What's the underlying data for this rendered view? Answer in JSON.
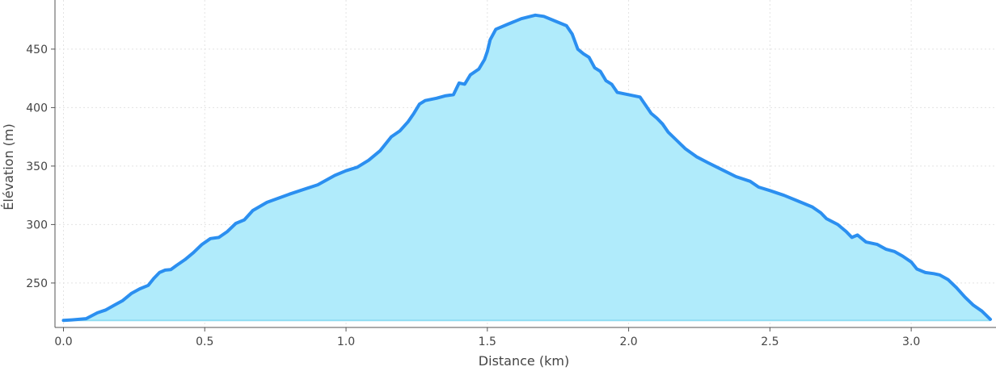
{
  "chart_data": {
    "type": "area",
    "title": "",
    "xlabel": "Distance (km)",
    "ylabel": "Élévation (m)",
    "xlim": [
      -0.03,
      3.3
    ],
    "ylim": [
      212,
      492
    ],
    "x_ticks": [
      0.0,
      0.5,
      1.0,
      1.5,
      2.0,
      2.5,
      3.0
    ],
    "x_tick_labels": [
      "0.0",
      "0.5",
      "1.0",
      "1.5",
      "2.0",
      "2.5",
      "3.0"
    ],
    "y_ticks": [
      250,
      300,
      350,
      400,
      450
    ],
    "y_tick_labels": [
      "250",
      "300",
      "350",
      "400",
      "450"
    ],
    "grid": true,
    "baseline": 218,
    "series": [
      {
        "line_color": "#2b8ff0",
        "fill_color": "#b0ebfb",
        "points": [
          [
            0.0,
            218
          ],
          [
            0.03,
            218.5
          ],
          [
            0.08,
            219.5
          ],
          [
            0.12,
            224.5
          ],
          [
            0.15,
            227
          ],
          [
            0.18,
            231
          ],
          [
            0.21,
            235
          ],
          [
            0.24,
            241
          ],
          [
            0.27,
            245
          ],
          [
            0.3,
            248
          ],
          [
            0.32,
            254
          ],
          [
            0.34,
            259
          ],
          [
            0.36,
            261
          ],
          [
            0.38,
            261.5
          ],
          [
            0.4,
            265
          ],
          [
            0.43,
            270
          ],
          [
            0.46,
            276
          ],
          [
            0.49,
            283
          ],
          [
            0.52,
            288
          ],
          [
            0.55,
            289
          ],
          [
            0.58,
            294
          ],
          [
            0.61,
            301
          ],
          [
            0.64,
            304
          ],
          [
            0.67,
            312
          ],
          [
            0.72,
            319
          ],
          [
            0.8,
            326
          ],
          [
            0.9,
            334
          ],
          [
            0.96,
            342
          ],
          [
            1.0,
            346
          ],
          [
            1.04,
            349
          ],
          [
            1.08,
            355
          ],
          [
            1.12,
            363
          ],
          [
            1.16,
            375
          ],
          [
            1.19,
            380
          ],
          [
            1.22,
            388
          ],
          [
            1.24,
            395
          ],
          [
            1.26,
            403
          ],
          [
            1.28,
            406
          ],
          [
            1.32,
            408
          ],
          [
            1.35,
            410
          ],
          [
            1.38,
            411
          ],
          [
            1.4,
            421
          ],
          [
            1.42,
            420
          ],
          [
            1.44,
            428
          ],
          [
            1.47,
            433
          ],
          [
            1.49,
            441
          ],
          [
            1.5,
            448
          ],
          [
            1.51,
            458
          ],
          [
            1.53,
            467
          ],
          [
            1.57,
            471
          ],
          [
            1.62,
            476
          ],
          [
            1.67,
            479
          ],
          [
            1.7,
            478
          ],
          [
            1.74,
            474
          ],
          [
            1.78,
            470
          ],
          [
            1.8,
            463
          ],
          [
            1.82,
            450
          ],
          [
            1.84,
            446
          ],
          [
            1.86,
            443
          ],
          [
            1.88,
            434
          ],
          [
            1.9,
            431
          ],
          [
            1.92,
            423
          ],
          [
            1.94,
            420
          ],
          [
            1.96,
            413
          ],
          [
            2.0,
            411
          ],
          [
            2.04,
            409
          ],
          [
            2.06,
            402
          ],
          [
            2.08,
            395
          ],
          [
            2.1,
            391
          ],
          [
            2.12,
            386
          ],
          [
            2.14,
            379
          ],
          [
            2.17,
            372
          ],
          [
            2.2,
            365
          ],
          [
            2.24,
            358
          ],
          [
            2.28,
            353
          ],
          [
            2.33,
            347
          ],
          [
            2.38,
            341
          ],
          [
            2.43,
            337
          ],
          [
            2.46,
            332
          ],
          [
            2.5,
            329
          ],
          [
            2.55,
            325
          ],
          [
            2.6,
            320
          ],
          [
            2.65,
            315
          ],
          [
            2.68,
            310
          ],
          [
            2.7,
            305
          ],
          [
            2.74,
            300
          ],
          [
            2.77,
            294
          ],
          [
            2.79,
            289
          ],
          [
            2.81,
            291
          ],
          [
            2.84,
            285
          ],
          [
            2.88,
            283
          ],
          [
            2.91,
            279
          ],
          [
            2.94,
            277
          ],
          [
            2.97,
            273
          ],
          [
            3.0,
            268
          ],
          [
            3.02,
            262
          ],
          [
            3.05,
            259
          ],
          [
            3.08,
            258
          ],
          [
            3.1,
            257
          ],
          [
            3.13,
            253
          ],
          [
            3.16,
            246
          ],
          [
            3.19,
            238
          ],
          [
            3.22,
            231
          ],
          [
            3.25,
            226
          ],
          [
            3.28,
            219
          ]
        ]
      }
    ]
  }
}
